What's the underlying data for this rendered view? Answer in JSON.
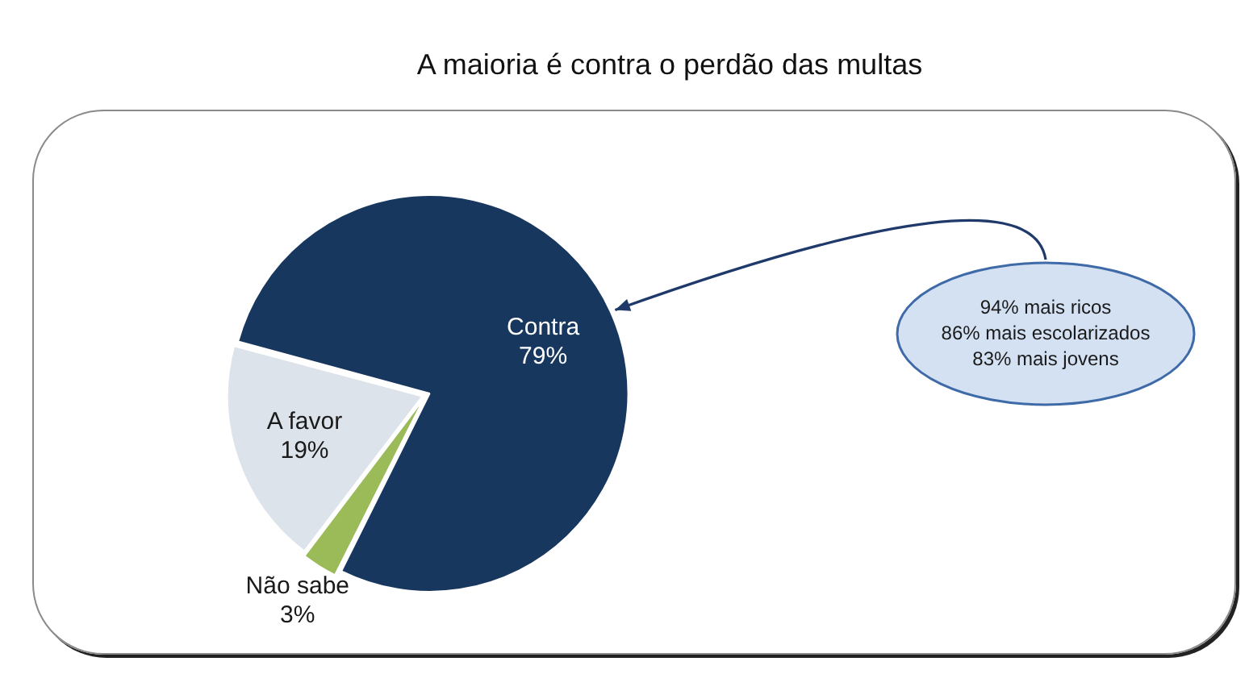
{
  "chart_data": {
    "type": "pie",
    "title": "A maioria é contra o perdão das multas",
    "categories": [
      "Contra",
      "Não sabe",
      "A favor"
    ],
    "values": [
      79,
      3,
      19
    ],
    "colors": [
      "#17375e",
      "#9bbb59",
      "#dde3eb"
    ],
    "value_labels": [
      "79%",
      "3%",
      "19%"
    ],
    "annotations": [
      "94% mais ricos",
      "86% mais escolarizados",
      "83% mais jovens"
    ]
  }
}
